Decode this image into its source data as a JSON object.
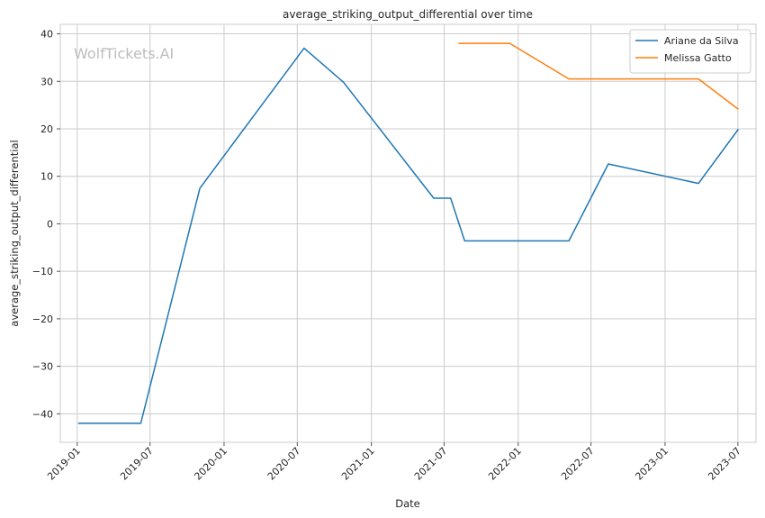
{
  "chart_data": {
    "type": "line",
    "title": "average_striking_output_differential over time",
    "xlabel": "Date",
    "ylabel": "average_striking_output_differential",
    "watermark": "WolfTickets.AI",
    "x_type": "date",
    "xlim": [
      "2018-11-20",
      "2023-08-15"
    ],
    "ylim": [
      -46,
      42
    ],
    "x_ticks": [
      "2019-01-01",
      "2019-07-01",
      "2020-01-01",
      "2020-07-01",
      "2021-01-01",
      "2021-07-01",
      "2022-01-01",
      "2022-07-01",
      "2023-01-01",
      "2023-07-01"
    ],
    "x_tick_labels": [
      "2019-01",
      "2019-07",
      "2020-01",
      "2020-07",
      "2021-01",
      "2021-07",
      "2022-01",
      "2022-07",
      "2023-01",
      "2023-07"
    ],
    "y_ticks": [
      -40,
      -30,
      -20,
      -10,
      0,
      10,
      20,
      30,
      40
    ],
    "y_tick_labels": [
      "−40",
      "−30",
      "−20",
      "−10",
      "0",
      "10",
      "20",
      "30",
      "40"
    ],
    "grid": true,
    "legend_position": "top-right",
    "series": [
      {
        "name": "Ariane da Silva",
        "color": "#1f77b4",
        "points": [
          {
            "x": "2019-01-05",
            "y": -42
          },
          {
            "x": "2019-06-08",
            "y": -42
          },
          {
            "x": "2019-11-02",
            "y": 7.5
          },
          {
            "x": "2020-07-18",
            "y": 37
          },
          {
            "x": "2020-10-24",
            "y": 29.8
          },
          {
            "x": "2021-06-05",
            "y": 5.4
          },
          {
            "x": "2021-07-17",
            "y": 5.4
          },
          {
            "x": "2021-08-21",
            "y": -3.6
          },
          {
            "x": "2022-05-07",
            "y": -3.6
          },
          {
            "x": "2022-08-13",
            "y": 12.6
          },
          {
            "x": "2023-03-25",
            "y": 8.5
          },
          {
            "x": "2023-07-01",
            "y": 19.8
          }
        ]
      },
      {
        "name": "Melissa Gatto",
        "color": "#ff7f0e",
        "points": [
          {
            "x": "2021-08-07",
            "y": 38
          },
          {
            "x": "2021-12-11",
            "y": 38
          },
          {
            "x": "2022-05-07",
            "y": 30.5
          },
          {
            "x": "2023-03-25",
            "y": 30.5
          },
          {
            "x": "2023-07-01",
            "y": 24.2
          }
        ]
      }
    ]
  }
}
